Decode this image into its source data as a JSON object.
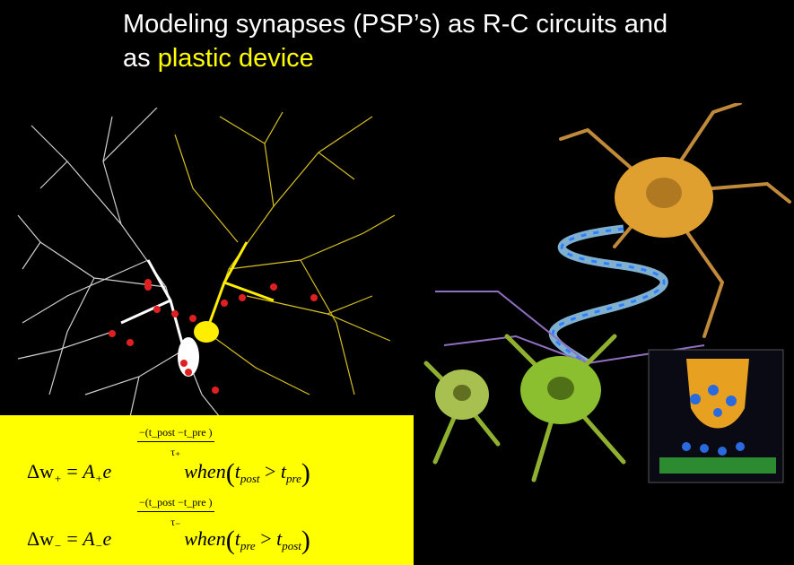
{
  "title": {
    "line1": "Modeling synapses (PSP’s) as R-C circuits and",
    "line2_prefix": "as ",
    "line2_highlight": "plastic device"
  },
  "formulas": {
    "eq1": {
      "lhs": "Δw",
      "lhs_sub": "+",
      "coef": "A",
      "coef_sub": "+",
      "exp_num": "−(t_post −t_pre )",
      "exp_den": "τ₊",
      "cond_word": "when",
      "cond_left": "t",
      "cond_left_sub": "post",
      "cond_op": ">",
      "cond_right": "t",
      "cond_right_sub": "pre"
    },
    "eq2": {
      "lhs": "Δw",
      "lhs_sub": "−",
      "coef": "A",
      "coef_sub": "−",
      "exp_num": "−(t_post −t_pre )",
      "exp_den": "τ₋",
      "cond_word": "when",
      "cond_left": "t",
      "cond_left_sub": "pre",
      "cond_op": ">",
      "cond_right": "t",
      "cond_right_sub": "post"
    }
  },
  "colors": {
    "background": "#000000",
    "highlight": "#ffff00",
    "formula_box": "#ffff00"
  }
}
